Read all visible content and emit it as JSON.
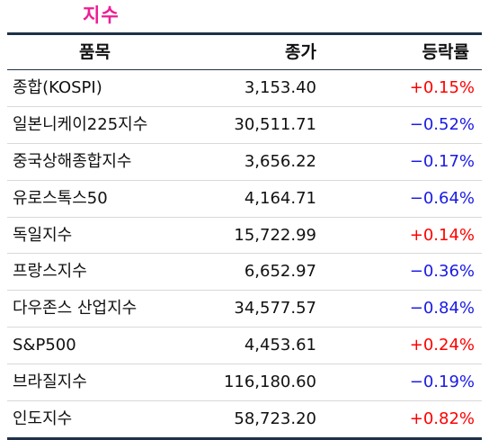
{
  "title": "지수",
  "colors": {
    "title": "#ee1c96",
    "up": "#ff0000",
    "down": "#1a1ae6",
    "rule": "#1f3148"
  },
  "table": {
    "headers": {
      "name": "품목",
      "close": "종가",
      "change": "등락률"
    },
    "rows": [
      {
        "name": "종합(KOSPI)",
        "close": "3,153.40",
        "change": "+0.15%",
        "direction": "up"
      },
      {
        "name": "일본니케이225지수",
        "close": "30,511.71",
        "change": "−0.52%",
        "direction": "down"
      },
      {
        "name": "중국상해종합지수",
        "close": "3,656.22",
        "change": "−0.17%",
        "direction": "down"
      },
      {
        "name": "유로스톡스50",
        "close": "4,164.71",
        "change": "−0.64%",
        "direction": "down"
      },
      {
        "name": "독일지수",
        "close": "15,722.99",
        "change": "+0.14%",
        "direction": "up"
      },
      {
        "name": "프랑스지수",
        "close": "6,652.97",
        "change": "−0.36%",
        "direction": "down"
      },
      {
        "name": "다우존스 산업지수",
        "close": "34,577.57",
        "change": "−0.84%",
        "direction": "down"
      },
      {
        "name": "S&P500",
        "close": "4,453.61",
        "change": "+0.24%",
        "direction": "up"
      },
      {
        "name": "브라질지수",
        "close": "116,180.60",
        "change": "−0.19%",
        "direction": "down"
      },
      {
        "name": "인도지수",
        "close": "58,723.20",
        "change": "+0.82%",
        "direction": "up"
      }
    ]
  }
}
